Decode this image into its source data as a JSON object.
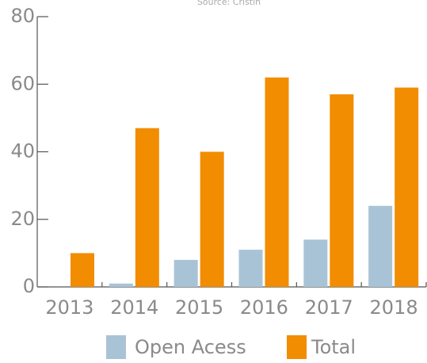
{
  "chart_data": {
    "type": "bar",
    "subtitle": "Source: Cristin",
    "categories": [
      "2013",
      "2014",
      "2015",
      "2016",
      "2017",
      "2018"
    ],
    "series": [
      {
        "name": "Open Acess",
        "color": "#a9c3d6",
        "values": [
          0,
          1,
          8,
          11,
          14,
          24
        ]
      },
      {
        "name": "Total",
        "color": "#f28c00",
        "values": [
          10,
          47,
          40,
          62,
          57,
          59
        ]
      }
    ],
    "ylim": [
      0,
      80
    ],
    "yticks": [
      0,
      20,
      40,
      60,
      80
    ],
    "grid": false
  }
}
